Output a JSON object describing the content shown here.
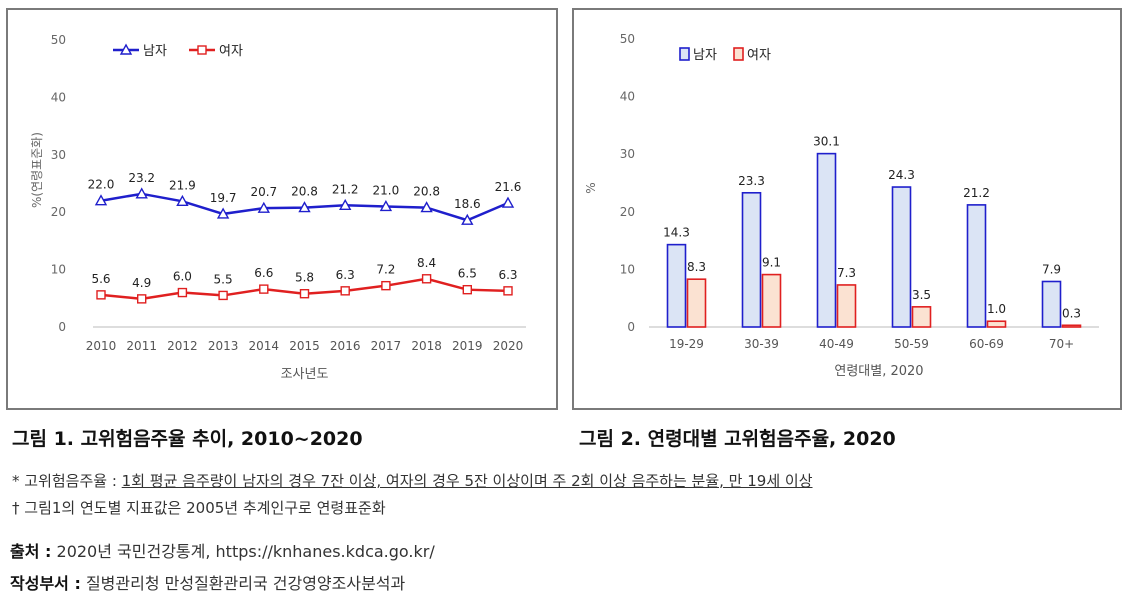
{
  "charts": [
    {
      "caption": "그림 1. 고위험음주율 추이, 2010~2020",
      "chart_data": {
        "type": "line",
        "x": [
          "2010",
          "2011",
          "2012",
          "2013",
          "2014",
          "2015",
          "2016",
          "2017",
          "2018",
          "2019",
          "2020"
        ],
        "series": [
          {
            "name": "남자",
            "values": [
              22.0,
              23.2,
              21.9,
              19.7,
              20.7,
              20.8,
              21.2,
              21.0,
              20.8,
              18.6,
              21.6
            ],
            "color": "#1f1fcc",
            "marker": "triangle"
          },
          {
            "name": "여자",
            "values": [
              5.6,
              4.9,
              6.0,
              5.5,
              6.6,
              5.8,
              6.3,
              7.2,
              8.4,
              6.5,
              6.3
            ],
            "color": "#e02020",
            "marker": "square"
          }
        ],
        "yticks": [
          0,
          10,
          20,
          30,
          40,
          50
        ],
        "ylim": [
          0,
          50
        ],
        "xlabel": "조사년도",
        "ylabel": "%(연령표준화)",
        "legend": "top-left",
        "grid": false
      }
    },
    {
      "caption": "그림 2. 연령대별 고위험음주율, 2020",
      "chart_data": {
        "type": "bar",
        "categories": [
          "19-29",
          "30-39",
          "40-49",
          "50-59",
          "60-69",
          "70+"
        ],
        "series": [
          {
            "name": "남자",
            "values": [
              14.3,
              23.3,
              30.1,
              24.3,
              21.2,
              7.9
            ],
            "fill": "#dbe4f5",
            "stroke": "#1f1fcc"
          },
          {
            "name": "여자",
            "values": [
              8.3,
              9.1,
              7.3,
              3.5,
              1.0,
              0.3
            ],
            "fill": "#fbe2d2",
            "stroke": "#e02020"
          }
        ],
        "yticks": [
          0,
          10,
          20,
          30,
          40,
          50
        ],
        "ylim": [
          0,
          50
        ],
        "xlabel": "연령대별, 2020",
        "ylabel": "%",
        "legend": "top-left",
        "grid": false
      }
    }
  ],
  "notes": {
    "note1_prefix": "* 고위험음주율 : ",
    "note1_def": "1회 평균 음주량이 남자의 경우 7잔 이상, 여자의 경우 5잔 이상이며 주 2회 이상 음주하는 분율, 만 19세 이상",
    "note2": "† 그림1의 연도별 지표값은 2005년 추계인구로 연령표준화"
  },
  "source": {
    "label": "출처 :",
    "value": "2020년 국민건강통계, https://knhanes.kdca.go.kr/"
  },
  "author": {
    "label": "작성부서 :",
    "value": "질병관리청 만성질환관리국 건강영양조사분석과"
  }
}
